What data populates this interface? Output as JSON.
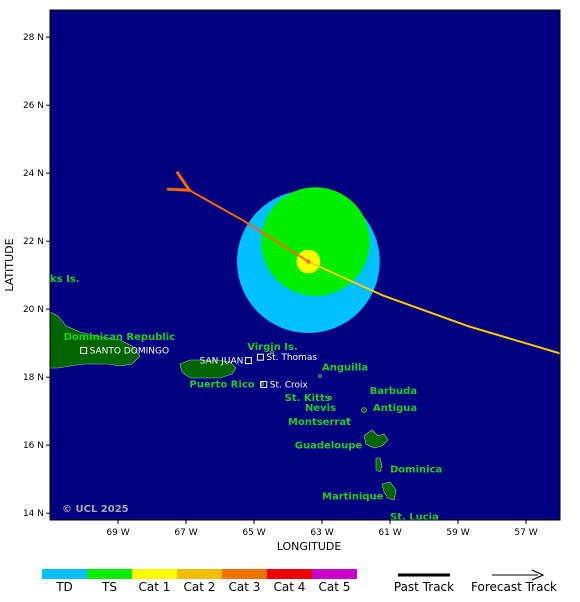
{
  "axes": {
    "xlabel": "LONGITUDE",
    "ylabel": "LATITUDE",
    "lat_ticks": [
      "28 N",
      "26 N",
      "24 N",
      "22 N",
      "20 N",
      "18 N",
      "16 N",
      "14 N"
    ],
    "lon_ticks": [
      "69 W",
      "67 W",
      "65 W",
      "63 W",
      "61 W",
      "59 W",
      "57 W"
    ],
    "lat_range": [
      13.8,
      28.8
    ],
    "lon_range": [
      -71.0,
      -56.0
    ]
  },
  "colors": {
    "ocean": "#000080",
    "land": "#006400",
    "past_track": "#ffcc00",
    "forecast_track": "#ff6600",
    "td": "#00c0ff",
    "ts": "#00ee00",
    "cat1": "#ffff00"
  },
  "storm": {
    "center": {
      "lat": 21.4,
      "lon": -63.4
    },
    "wind_radii_deg": {
      "td": 2.1,
      "ts": 1.6,
      "cat1": 0.35
    }
  },
  "tracks": {
    "past": [
      {
        "lat": 18.7,
        "lon": -56.0
      },
      {
        "lat": 19.5,
        "lon": -58.7
      },
      {
        "lat": 20.4,
        "lon": -61.2
      },
      {
        "lat": 21.4,
        "lon": -63.4
      }
    ],
    "forecast": [
      {
        "lat": 21.4,
        "lon": -63.4
      },
      {
        "lat": 22.6,
        "lon": -65.3
      },
      {
        "lat": 23.5,
        "lon": -66.9
      }
    ]
  },
  "places": [
    {
      "label": "ks Is.",
      "lat": 20.8,
      "lon": -71.0,
      "style": "green"
    },
    {
      "label": "Dominican Republic",
      "lat": 19.1,
      "lon": -70.6,
      "style": "green"
    },
    {
      "label": "SANTO DOMINGO",
      "lat": 18.7,
      "lon": -70.1,
      "style": "white",
      "marker": true
    },
    {
      "label": "SAN JUAN",
      "lat": 18.4,
      "lon": -66.6,
      "style": "white",
      "marker": true,
      "marker_after": true
    },
    {
      "label": "Puerto Rico",
      "lat": 17.7,
      "lon": -66.9,
      "style": "green"
    },
    {
      "label": "Virgin Is.",
      "lat": 18.8,
      "lon": -65.2,
      "style": "green"
    },
    {
      "label": "St. Thomas",
      "lat": 18.5,
      "lon": -64.9,
      "style": "white",
      "marker": true
    },
    {
      "label": "Anguilla",
      "lat": 18.2,
      "lon": -63.0,
      "style": "green"
    },
    {
      "label": "St. Croix",
      "lat": 17.7,
      "lon": -64.8,
      "style": "white",
      "marker": true
    },
    {
      "label": "St. Kitts",
      "lat": 17.3,
      "lon": -64.1,
      "style": "green"
    },
    {
      "label": "Barbuda",
      "lat": 17.5,
      "lon": -61.6,
      "style": "green"
    },
    {
      "label": "Nevis",
      "lat": 17.0,
      "lon": -63.5,
      "style": "green"
    },
    {
      "label": "Antigua",
      "lat": 17.0,
      "lon": -61.5,
      "style": "green"
    },
    {
      "label": "Montserrat",
      "lat": 16.6,
      "lon": -64.0,
      "style": "green"
    },
    {
      "label": "Guadeloupe",
      "lat": 15.9,
      "lon": -63.8,
      "style": "green"
    },
    {
      "label": "Dominica",
      "lat": 15.2,
      "lon": -61.0,
      "style": "green"
    },
    {
      "label": "Martinique",
      "lat": 14.4,
      "lon": -63.0,
      "style": "green"
    },
    {
      "label": "St. Lucia",
      "lat": 13.8,
      "lon": -61.0,
      "style": "green"
    }
  ],
  "copyright": "© UCL 2025",
  "legend": {
    "categories": [
      {
        "label": "TD",
        "color": "#00c0ff"
      },
      {
        "label": "TS",
        "color": "#00ee00"
      },
      {
        "label": "Cat 1",
        "color": "#ffff00"
      },
      {
        "label": "Cat 2",
        "color": "#f0c000"
      },
      {
        "label": "Cat 3",
        "color": "#f07000"
      },
      {
        "label": "Cat 4",
        "color": "#ee0000"
      },
      {
        "label": "Cat 5",
        "color": "#cc00cc"
      }
    ],
    "past_track_label": "Past Track",
    "forecast_track_label": "Forecast Track"
  }
}
